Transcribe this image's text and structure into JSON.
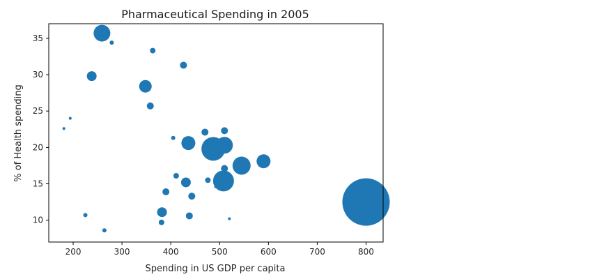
{
  "chart_data": {
    "type": "scatter",
    "title": "Pharmaceutical Spending in 2005",
    "xlabel": "Spending in US GDP per capita",
    "ylabel": "% of Health spending",
    "xlim": [
      150,
      835
    ],
    "ylim": [
      7,
      37
    ],
    "xticks": [
      200,
      300,
      400,
      500,
      600,
      700,
      800
    ],
    "yticks": [
      10,
      15,
      20,
      25,
      30,
      35
    ],
    "grid": false,
    "color": "#1f77b4",
    "series": [
      {
        "points": [
          {
            "x": 259,
            "y": 35.7,
            "size": 12
          },
          {
            "x": 279,
            "y": 34.4,
            "size": 3
          },
          {
            "x": 363,
            "y": 33.3,
            "size": 4
          },
          {
            "x": 238,
            "y": 29.8,
            "size": 7
          },
          {
            "x": 426,
            "y": 31.3,
            "size": 5
          },
          {
            "x": 348,
            "y": 28.4,
            "size": 9
          },
          {
            "x": 358,
            "y": 25.7,
            "size": 5
          },
          {
            "x": 194,
            "y": 24.0,
            "size": 2
          },
          {
            "x": 181,
            "y": 22.6,
            "size": 2
          },
          {
            "x": 405,
            "y": 21.3,
            "size": 3
          },
          {
            "x": 470,
            "y": 22.1,
            "size": 5
          },
          {
            "x": 510,
            "y": 22.3,
            "size": 5
          },
          {
            "x": 436,
            "y": 20.6,
            "size": 10
          },
          {
            "x": 487,
            "y": 19.8,
            "size": 17
          },
          {
            "x": 510,
            "y": 20.3,
            "size": 12
          },
          {
            "x": 545,
            "y": 17.5,
            "size": 13
          },
          {
            "x": 590,
            "y": 18.1,
            "size": 10
          },
          {
            "x": 510,
            "y": 17.1,
            "size": 5
          },
          {
            "x": 411,
            "y": 16.1,
            "size": 4
          },
          {
            "x": 431,
            "y": 15.2,
            "size": 7
          },
          {
            "x": 476,
            "y": 15.5,
            "size": 4
          },
          {
            "x": 492,
            "y": 14.6,
            "size": 2
          },
          {
            "x": 508,
            "y": 15.4,
            "size": 15
          },
          {
            "x": 390,
            "y": 13.9,
            "size": 5
          },
          {
            "x": 443,
            "y": 13.3,
            "size": 5
          },
          {
            "x": 382,
            "y": 11.1,
            "size": 7
          },
          {
            "x": 438,
            "y": 10.6,
            "size": 5
          },
          {
            "x": 225,
            "y": 10.7,
            "size": 3
          },
          {
            "x": 381,
            "y": 9.7,
            "size": 4
          },
          {
            "x": 264,
            "y": 8.6,
            "size": 3
          },
          {
            "x": 520,
            "y": 10.2,
            "size": 2
          },
          {
            "x": 800,
            "y": 12.5,
            "size": 34
          }
        ]
      }
    ]
  }
}
